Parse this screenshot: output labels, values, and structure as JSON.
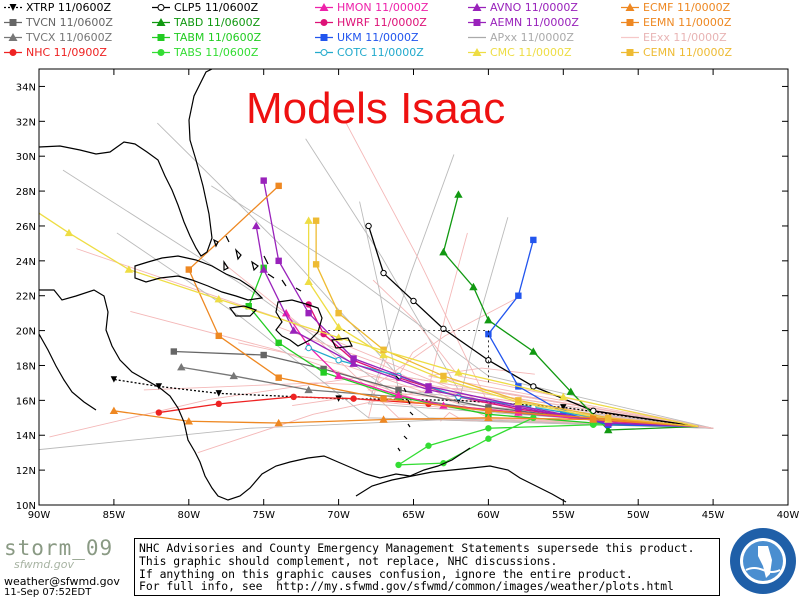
{
  "legend": [
    {
      "label": "XTRP  11/0600Z",
      "color": "#000000",
      "marker": "triangle-down",
      "dash": true
    },
    {
      "label": "TVCN  11/0600Z",
      "color": "#666666",
      "marker": "square"
    },
    {
      "label": "TVCX  11/0600Z",
      "color": "#777777",
      "marker": "triangle"
    },
    {
      "label": "NHC  11/0900Z",
      "color": "#ee2222",
      "marker": "circle"
    },
    {
      "label": "CLP5  11/0600Z",
      "color": "#000000",
      "marker": "open-circle"
    },
    {
      "label": "TABD  11/0600Z",
      "color": "#119911",
      "marker": "triangle"
    },
    {
      "label": "TABM  11/0600Z",
      "color": "#22cc22",
      "marker": "square"
    },
    {
      "label": "TABS  11/0600Z",
      "color": "#33dd33",
      "marker": "circle"
    },
    {
      "label": "HMON  11/0000Z",
      "color": "#ee22aa",
      "marker": "triangle"
    },
    {
      "label": "HWRF  11/0000Z",
      "color": "#dd1177",
      "marker": "circle"
    },
    {
      "label": "UKM  11/0000Z",
      "color": "#2255ee",
      "marker": "square"
    },
    {
      "label": "COTC  11/0000Z",
      "color": "#22aacc",
      "marker": "open-circle"
    },
    {
      "label": "AVNO  11/0000Z",
      "color": "#9922bb",
      "marker": "triangle"
    },
    {
      "label": "AEMN  11/0000Z",
      "color": "#9922bb",
      "marker": "square"
    },
    {
      "label": "APxx  11/0000Z",
      "color": "#aaaaaa",
      "marker": "none"
    },
    {
      "label": "CMC  11/0000Z",
      "color": "#eedd44",
      "marker": "triangle"
    },
    {
      "label": "ECMF  11/0000Z",
      "color": "#ee8822",
      "marker": "triangle"
    },
    {
      "label": "EEMN  11/0000Z",
      "color": "#ee8822",
      "marker": "square"
    },
    {
      "label": "EExx  11/0000Z",
      "color": "#f6c8c8",
      "marker": "none"
    },
    {
      "label": "CEMN  11/0000Z",
      "color": "#eebb33",
      "marker": "square"
    }
  ],
  "map": {
    "title": "Models Isaac",
    "lon_labels": [
      "90W",
      "85W",
      "80W",
      "75W",
      "70W",
      "65W",
      "60W",
      "55W",
      "50W",
      "45W",
      "40W"
    ],
    "lat_labels": [
      "10N",
      "12N",
      "14N",
      "16N",
      "18N",
      "20N",
      "22N",
      "24N",
      "26N",
      "28N",
      "30N",
      "32N",
      "34N"
    ],
    "lon_range": [
      -90,
      -40
    ],
    "lat_range": [
      10,
      35
    ]
  },
  "footer": {
    "brand": "storm_09",
    "brand_sub": "sfwmd.gov",
    "email": "weather@sfwmd.gov",
    "timestamp": "11-Sep 07:52EDT",
    "disclaimer_lines": [
      "NHC Advisories and County Emergency Management Statements supersede this product.",
      "This graphic should complement, not replace, NHC discussions.",
      "If anything on this graphic causes confusion, ignore the entire product.",
      "For full info, see  http://my.sfwmd.gov/sfwmd/common/images/weather/plots.html"
    ],
    "logo_text": "SOUTH FLORIDA WATER MANAGEMENT DISTRICT"
  }
}
